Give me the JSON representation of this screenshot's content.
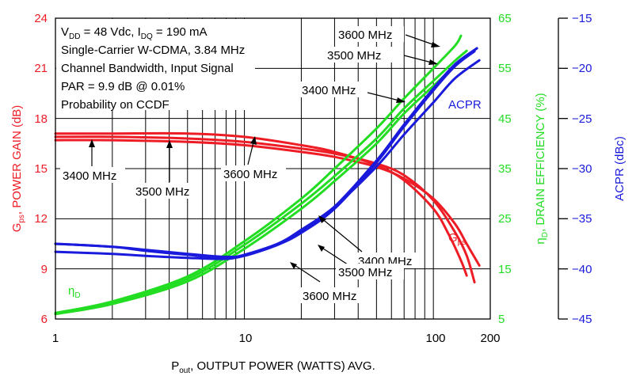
{
  "chart_data": {
    "type": "line",
    "xscale": "log",
    "xlim": [
      1,
      200
    ],
    "x_ticks": [
      "1",
      "10",
      "100",
      "200"
    ],
    "x_title": {
      "main": "P",
      "sub": "out",
      "rest": ", OUTPUT POWER (WATTS) AVG."
    },
    "y_left": {
      "label": "POWER GAIN (dB)",
      "symbol": "G",
      "symbol_sub": "ps",
      "ylim": [
        6,
        24
      ],
      "ticks": [
        "6",
        "9",
        "12",
        "15",
        "18",
        "21",
        "24"
      ],
      "color": "#ee1c25"
    },
    "y_right1": {
      "label": ", DRAIN EFFICIENCY (%)",
      "symbol": "η",
      "symbol_sub": "D",
      "ylim": [
        5,
        65
      ],
      "ticks": [
        "5",
        "15",
        "25",
        "35",
        "45",
        "55",
        "65"
      ],
      "color": "#22dd22"
    },
    "y_right2": {
      "label": "ACPR (dBc)",
      "ylim": [
        -45,
        -15
      ],
      "ticks": [
        "−15",
        "−20",
        "−25",
        "−30",
        "−35",
        "−40",
        "−45"
      ],
      "color": "#1a1adc"
    },
    "conditions": [
      {
        "main": "V",
        "sub": "DD",
        "mid": " = 48 Vdc, I",
        "sub2": "DQ",
        "rest": " = 190 mA"
      },
      {
        "main": "Single-Carrier W-CDMA, 3.84 MHz"
      },
      {
        "main": "Channel Bandwidth, Input Signal"
      },
      {
        "main": "PAR = 9.9 dB @ 0.01%"
      },
      {
        "main": "Probability on CCDF"
      }
    ],
    "curve_labels": {
      "gps": {
        "main": "G",
        "sub": "ps"
      },
      "eta": {
        "main": "η",
        "sub": "D"
      },
      "acpr": "ACPR"
    },
    "annotations": {
      "gain_3400": "3400 MHz",
      "gain_3500": "3500 MHz",
      "gain_3600": "3600 MHz",
      "eff_3600": "3600 MHz",
      "eff_3500": "3500 MHz",
      "eff_3400": "3400 MHz",
      "acpr_3400": "3400 MHz",
      "acpr_3500": "3500 MHz",
      "acpr_3600": "3600 MHz"
    },
    "series": [
      {
        "name": "Gps 3400 MHz",
        "axis": "y_left",
        "color": "#ee1c25",
        "x": [
          1,
          2,
          5,
          10,
          20,
          30,
          50,
          70,
          100,
          130,
          150,
          175
        ],
        "y": [
          16.7,
          16.7,
          16.6,
          16.4,
          16.0,
          15.7,
          15.1,
          14.4,
          13.2,
          11.7,
          10.5,
          9.2
        ]
      },
      {
        "name": "Gps 3500 MHz",
        "axis": "y_left",
        "color": "#ee1c25",
        "x": [
          1,
          2,
          5,
          10,
          20,
          30,
          50,
          70,
          100,
          130,
          150,
          165
        ],
        "y": [
          16.9,
          16.9,
          16.8,
          16.6,
          16.2,
          15.9,
          15.3,
          14.6,
          13.1,
          11.2,
          9.8,
          8.2
        ]
      },
      {
        "name": "Gps 3600 MHz",
        "axis": "y_left",
        "color": "#ee1c25",
        "x": [
          1,
          2,
          5,
          10,
          20,
          30,
          50,
          70,
          100,
          120,
          140,
          150
        ],
        "y": [
          17.1,
          17.1,
          17.1,
          16.9,
          16.4,
          16.0,
          15.2,
          14.3,
          12.6,
          11.1,
          9.5,
          8.6
        ]
      },
      {
        "name": "ηD 3400 MHz",
        "axis": "y_right1",
        "color": "#22dd22",
        "x": [
          1,
          2,
          5,
          10,
          20,
          30,
          50,
          70,
          100,
          130,
          150
        ],
        "y": [
          6.0,
          8.0,
          12.5,
          19.0,
          27.0,
          32.5,
          40.0,
          46.0,
          51.5,
          55.5,
          57.5
        ]
      },
      {
        "name": "ηD 3500 MHz",
        "axis": "y_right1",
        "color": "#22dd22",
        "x": [
          1,
          2,
          5,
          10,
          20,
          30,
          50,
          70,
          100,
          130,
          150
        ],
        "y": [
          6.0,
          8.2,
          13.0,
          19.8,
          28.0,
          33.5,
          41.0,
          47.0,
          52.5,
          56.5,
          58.5
        ]
      },
      {
        "name": "ηD 3600 MHz",
        "axis": "y_right1",
        "color": "#22dd22",
        "x": [
          1,
          2,
          5,
          10,
          20,
          30,
          50,
          70,
          100,
          130,
          140
        ],
        "y": [
          6.2,
          8.5,
          13.5,
          20.5,
          29.0,
          35.0,
          43.0,
          49.0,
          55.0,
          59.5,
          61.5
        ]
      },
      {
        "name": "ACPR 3400 MHz",
        "axis": "y_right2",
        "color": "#1a1adc",
        "x": [
          1,
          2,
          3,
          5,
          8,
          10,
          15,
          20,
          30,
          50,
          70,
          100,
          130,
          170
        ],
        "y": [
          -37.5,
          -37.8,
          -38.1,
          -38.5,
          -38.8,
          -38.6,
          -37.5,
          -36.3,
          -33.8,
          -29.2,
          -25.6,
          -22.0,
          -19.6,
          -18.0
        ]
      },
      {
        "name": "ACPR 3500 MHz",
        "axis": "y_right2",
        "color": "#1a1adc",
        "x": [
          1,
          2,
          3,
          5,
          8,
          10,
          15,
          20,
          30,
          50,
          70,
          100,
          130,
          165
        ],
        "y": [
          -37.5,
          -37.8,
          -38.2,
          -38.6,
          -38.9,
          -38.7,
          -37.6,
          -36.4,
          -34.0,
          -29.4,
          -25.8,
          -22.2,
          -19.8,
          -18.3
        ]
      },
      {
        "name": "ACPR 3600 MHz",
        "axis": "y_right2",
        "color": "#1a1adc",
        "x": [
          1,
          2,
          3,
          5,
          8,
          10,
          15,
          20,
          30,
          50,
          70,
          100,
          130,
          175
        ],
        "y": [
          -38.3,
          -38.5,
          -38.7,
          -38.9,
          -39.0,
          -38.6,
          -37.5,
          -36.1,
          -33.8,
          -29.8,
          -26.6,
          -23.4,
          -21.0,
          -19.2
        ]
      }
    ]
  }
}
